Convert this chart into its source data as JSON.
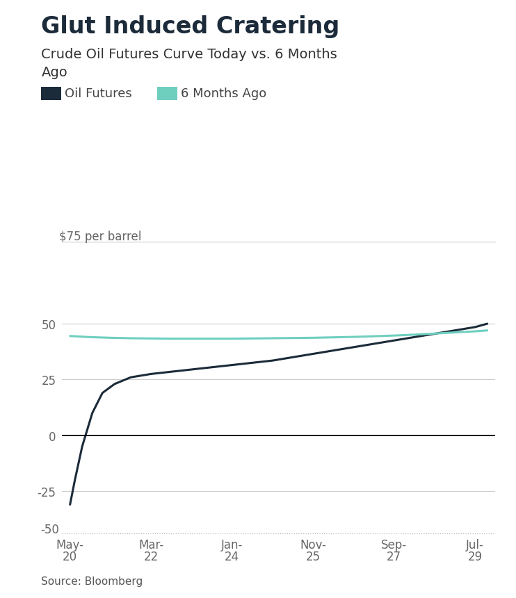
{
  "title": "Glut Induced Cratering",
  "subtitle": "Crude Oil Futures Curve Today vs. 6 Months\nAgo",
  "ylabel": "$75 per barrel",
  "source": "Source: Bloomberg",
  "legend": [
    "Oil Futures",
    "6 Months Ago"
  ],
  "line1_color": "#1c2b3a",
  "line2_color": "#6ecfbf",
  "background_color": "#ffffff",
  "xtick_top_labels": [
    "May-",
    "Mar-",
    "Jan-",
    "Nov-",
    "Sep-",
    "Jul-"
  ],
  "xtick_bot_labels": [
    "20",
    "22",
    "24",
    "25",
    "27",
    "29"
  ],
  "xtick_positions": [
    0,
    2,
    4,
    6,
    8,
    10
  ],
  "ytick_labels": [
    "-50",
    "-25",
    "0",
    "25",
    "50"
  ],
  "ytick_positions": [
    -50,
    -25,
    0,
    25,
    50
  ],
  "ylim": [
    -38,
    80
  ],
  "xlim": [
    -0.2,
    10.5
  ],
  "oil_futures_x": [
    0,
    0.12,
    0.3,
    0.55,
    0.8,
    1.1,
    1.5,
    2.0,
    2.5,
    3.0,
    3.5,
    4.0,
    4.5,
    5.0,
    5.5,
    6.0,
    6.5,
    7.0,
    7.5,
    8.0,
    8.5,
    9.0,
    9.5,
    10.0,
    10.3
  ],
  "oil_futures_y": [
    -31,
    -20,
    -5,
    10,
    19,
    23,
    26,
    27.5,
    28.5,
    29.5,
    30.5,
    31.5,
    32.5,
    33.5,
    35,
    36.5,
    38,
    39.5,
    41,
    42.5,
    44,
    45.5,
    47,
    48.5,
    50
  ],
  "six_months_x": [
    0,
    0.5,
    1.0,
    1.5,
    2.0,
    2.5,
    3.0,
    3.5,
    4.0,
    4.5,
    5.0,
    5.5,
    6.0,
    6.5,
    7.0,
    7.5,
    8.0,
    8.5,
    9.0,
    9.5,
    10.0,
    10.3
  ],
  "six_months_y": [
    44.5,
    44.0,
    43.7,
    43.5,
    43.4,
    43.3,
    43.3,
    43.3,
    43.3,
    43.4,
    43.5,
    43.6,
    43.7,
    43.9,
    44.1,
    44.4,
    44.7,
    45.1,
    45.6,
    46.1,
    46.6,
    47.0
  ]
}
